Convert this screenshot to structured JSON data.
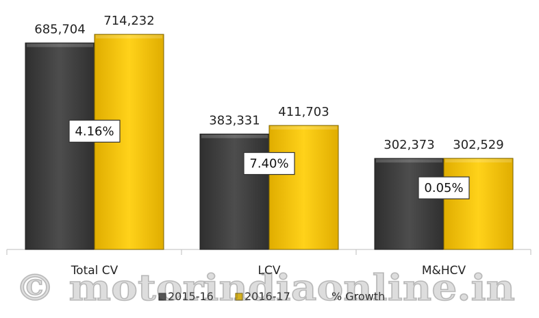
{
  "chart_data": {
    "type": "bar",
    "categories": [
      "Total CV",
      "LCV",
      "M&HCV"
    ],
    "series": [
      {
        "name": "2015-16",
        "values": [
          685704,
          383331,
          302373
        ],
        "color": "#4a4a4a"
      },
      {
        "name": "2016-17",
        "values": [
          714232,
          411703,
          302529
        ],
        "color": "#f5c400"
      }
    ],
    "value_labels": [
      [
        "685,704",
        "383,331",
        "302,373"
      ],
      [
        "714,232",
        "411,703",
        "302,529"
      ]
    ],
    "growth": {
      "name": "% Growth",
      "labels": [
        "4.16%",
        "7.40%",
        "0.05%"
      ]
    },
    "ylim": [
      0,
      760000
    ],
    "grid": false,
    "legend": "bottom"
  },
  "watermark": "© motorindiaonline.in"
}
